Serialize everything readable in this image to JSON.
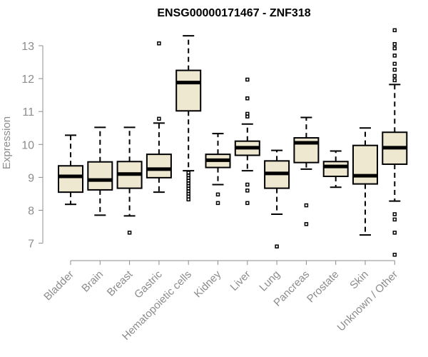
{
  "chart_data": {
    "type": "boxplot",
    "title": "ENSG00000171467 - ZNF318",
    "xlabel": "",
    "ylabel": "Expression",
    "ylim": [
      6.6,
      13.5
    ],
    "yticks": [
      7,
      8,
      9,
      10,
      11,
      12,
      13
    ],
    "box_fill": "#efe8d0",
    "categories": [
      "Bladder",
      "Brain",
      "Breast",
      "Gastric",
      "Hematopoietic cells",
      "Kidney",
      "Liver",
      "Lung",
      "Pancreas",
      "Prostate",
      "Skin",
      "Unknown / Other"
    ],
    "boxes": [
      {
        "whisker_low": 8.18,
        "q1": 8.55,
        "median": 9.03,
        "q3": 9.35,
        "whisker_high": 10.28,
        "outliers": []
      },
      {
        "whisker_low": 7.85,
        "q1": 8.62,
        "median": 8.92,
        "q3": 9.47,
        "whisker_high": 10.52,
        "outliers": []
      },
      {
        "whisker_low": 7.83,
        "q1": 8.67,
        "median": 9.1,
        "q3": 9.48,
        "whisker_high": 10.52,
        "outliers": [
          7.32
        ]
      },
      {
        "whisker_low": 8.55,
        "q1": 8.99,
        "median": 9.25,
        "q3": 9.7,
        "whisker_high": 10.65,
        "outliers": [
          10.78,
          13.07
        ]
      },
      {
        "whisker_low": 9.2,
        "q1": 11.02,
        "median": 11.88,
        "q3": 12.25,
        "whisker_high": 13.3,
        "outliers": [
          8.33,
          8.42,
          8.5,
          8.58,
          8.66,
          8.74,
          8.82,
          8.9,
          8.98,
          9.06,
          9.14
        ]
      },
      {
        "whisker_low": 8.78,
        "q1": 9.3,
        "median": 9.52,
        "q3": 9.7,
        "whisker_high": 10.33,
        "outliers": [
          8.22,
          8.48
        ]
      },
      {
        "whisker_low": 9.2,
        "q1": 9.67,
        "median": 9.9,
        "q3": 10.1,
        "whisker_high": 10.62,
        "outliers": [
          8.22,
          8.6,
          8.78,
          10.85,
          10.93,
          11.4,
          11.97
        ]
      },
      {
        "whisker_low": 7.88,
        "q1": 8.67,
        "median": 9.12,
        "q3": 9.5,
        "whisker_high": 9.82,
        "outliers": [
          6.9
        ]
      },
      {
        "whisker_low": 9.25,
        "q1": 9.45,
        "median": 10.05,
        "q3": 10.2,
        "whisker_high": 10.82,
        "outliers": [
          7.58,
          8.15
        ]
      },
      {
        "whisker_low": 8.7,
        "q1": 9.03,
        "median": 9.33,
        "q3": 9.48,
        "whisker_high": 9.8,
        "outliers": []
      },
      {
        "whisker_low": 7.25,
        "q1": 8.8,
        "median": 9.05,
        "q3": 9.97,
        "whisker_high": 10.5,
        "outliers": []
      },
      {
        "whisker_low": 8.28,
        "q1": 9.4,
        "median": 9.9,
        "q3": 10.37,
        "whisker_high": 11.82,
        "outliers": [
          6.65,
          7.32,
          7.72,
          7.88,
          11.95,
          12.08,
          12.27,
          12.45,
          12.7,
          12.92,
          13.05,
          13.47
        ]
      }
    ]
  }
}
